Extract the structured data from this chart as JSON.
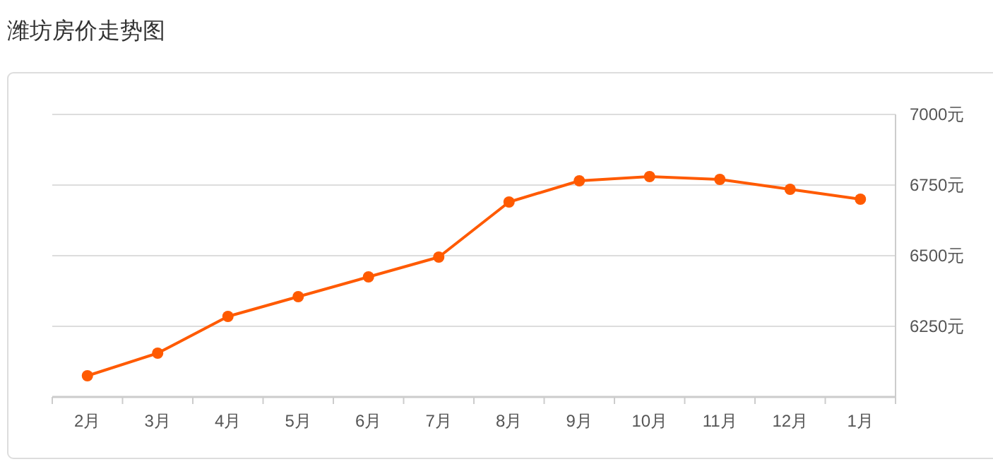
{
  "chart_data": {
    "type": "line",
    "title": "潍坊房价走势图",
    "categories": [
      "2月",
      "3月",
      "4月",
      "5月",
      "6月",
      "7月",
      "8月",
      "9月",
      "10月",
      "11月",
      "12月",
      "1月"
    ],
    "values": [
      6075,
      6155,
      6285,
      6355,
      6425,
      6495,
      6690,
      6765,
      6780,
      6770,
      6735,
      6700
    ],
    "color": "#ff5a00",
    "marker": "circle",
    "grid": "y",
    "ylim": [
      6000,
      7000
    ],
    "yticks": [
      {
        "value": 6250,
        "label": "6250元"
      },
      {
        "value": 6500,
        "label": "6500元"
      },
      {
        "value": 6750,
        "label": "6750元"
      },
      {
        "value": 7000,
        "label": "7000元"
      }
    ]
  }
}
